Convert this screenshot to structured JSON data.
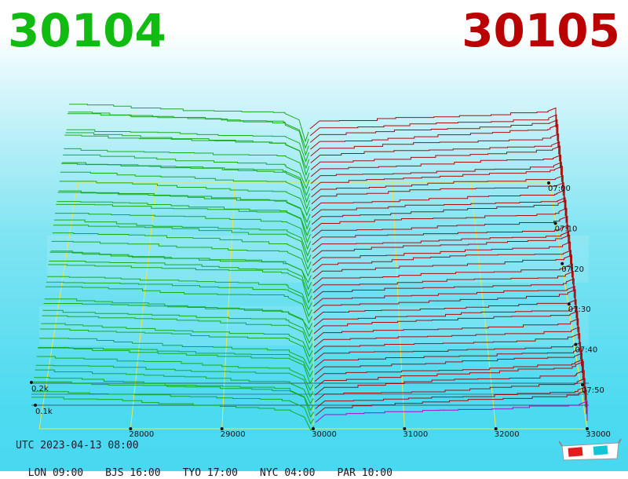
{
  "header": {
    "bid_price": "30104",
    "ask_price": "30105",
    "bid_color": "#11bb11",
    "ask_color": "#bb0000"
  },
  "footer": {
    "utc": "UTC 2023-04-13 08:00",
    "zones": [
      "LON 09:00",
      "BJS 16:00",
      "TYO 17:00",
      "NYC 04:00",
      "PAR 10:00"
    ]
  },
  "icons": {
    "stereo_toggle": "3d-glasses-icon"
  },
  "chart_data": {
    "type": "area",
    "price_axis": {
      "ticks": [
        28000,
        29000,
        30000,
        31000,
        32000,
        33000
      ],
      "range": [
        27000,
        33000
      ]
    },
    "time_axis": {
      "ticks": [
        "07:00",
        "07:10",
        "07:20",
        "07:30",
        "07:40",
        "07:50"
      ]
    },
    "volume_axis": {
      "ticks": [
        "0.1k",
        "0.2k"
      ]
    },
    "series": [
      {
        "side": "bid",
        "color": "#11aa11"
      },
      {
        "side": "ask",
        "color": "#aa0000"
      }
    ],
    "grid": true
  }
}
